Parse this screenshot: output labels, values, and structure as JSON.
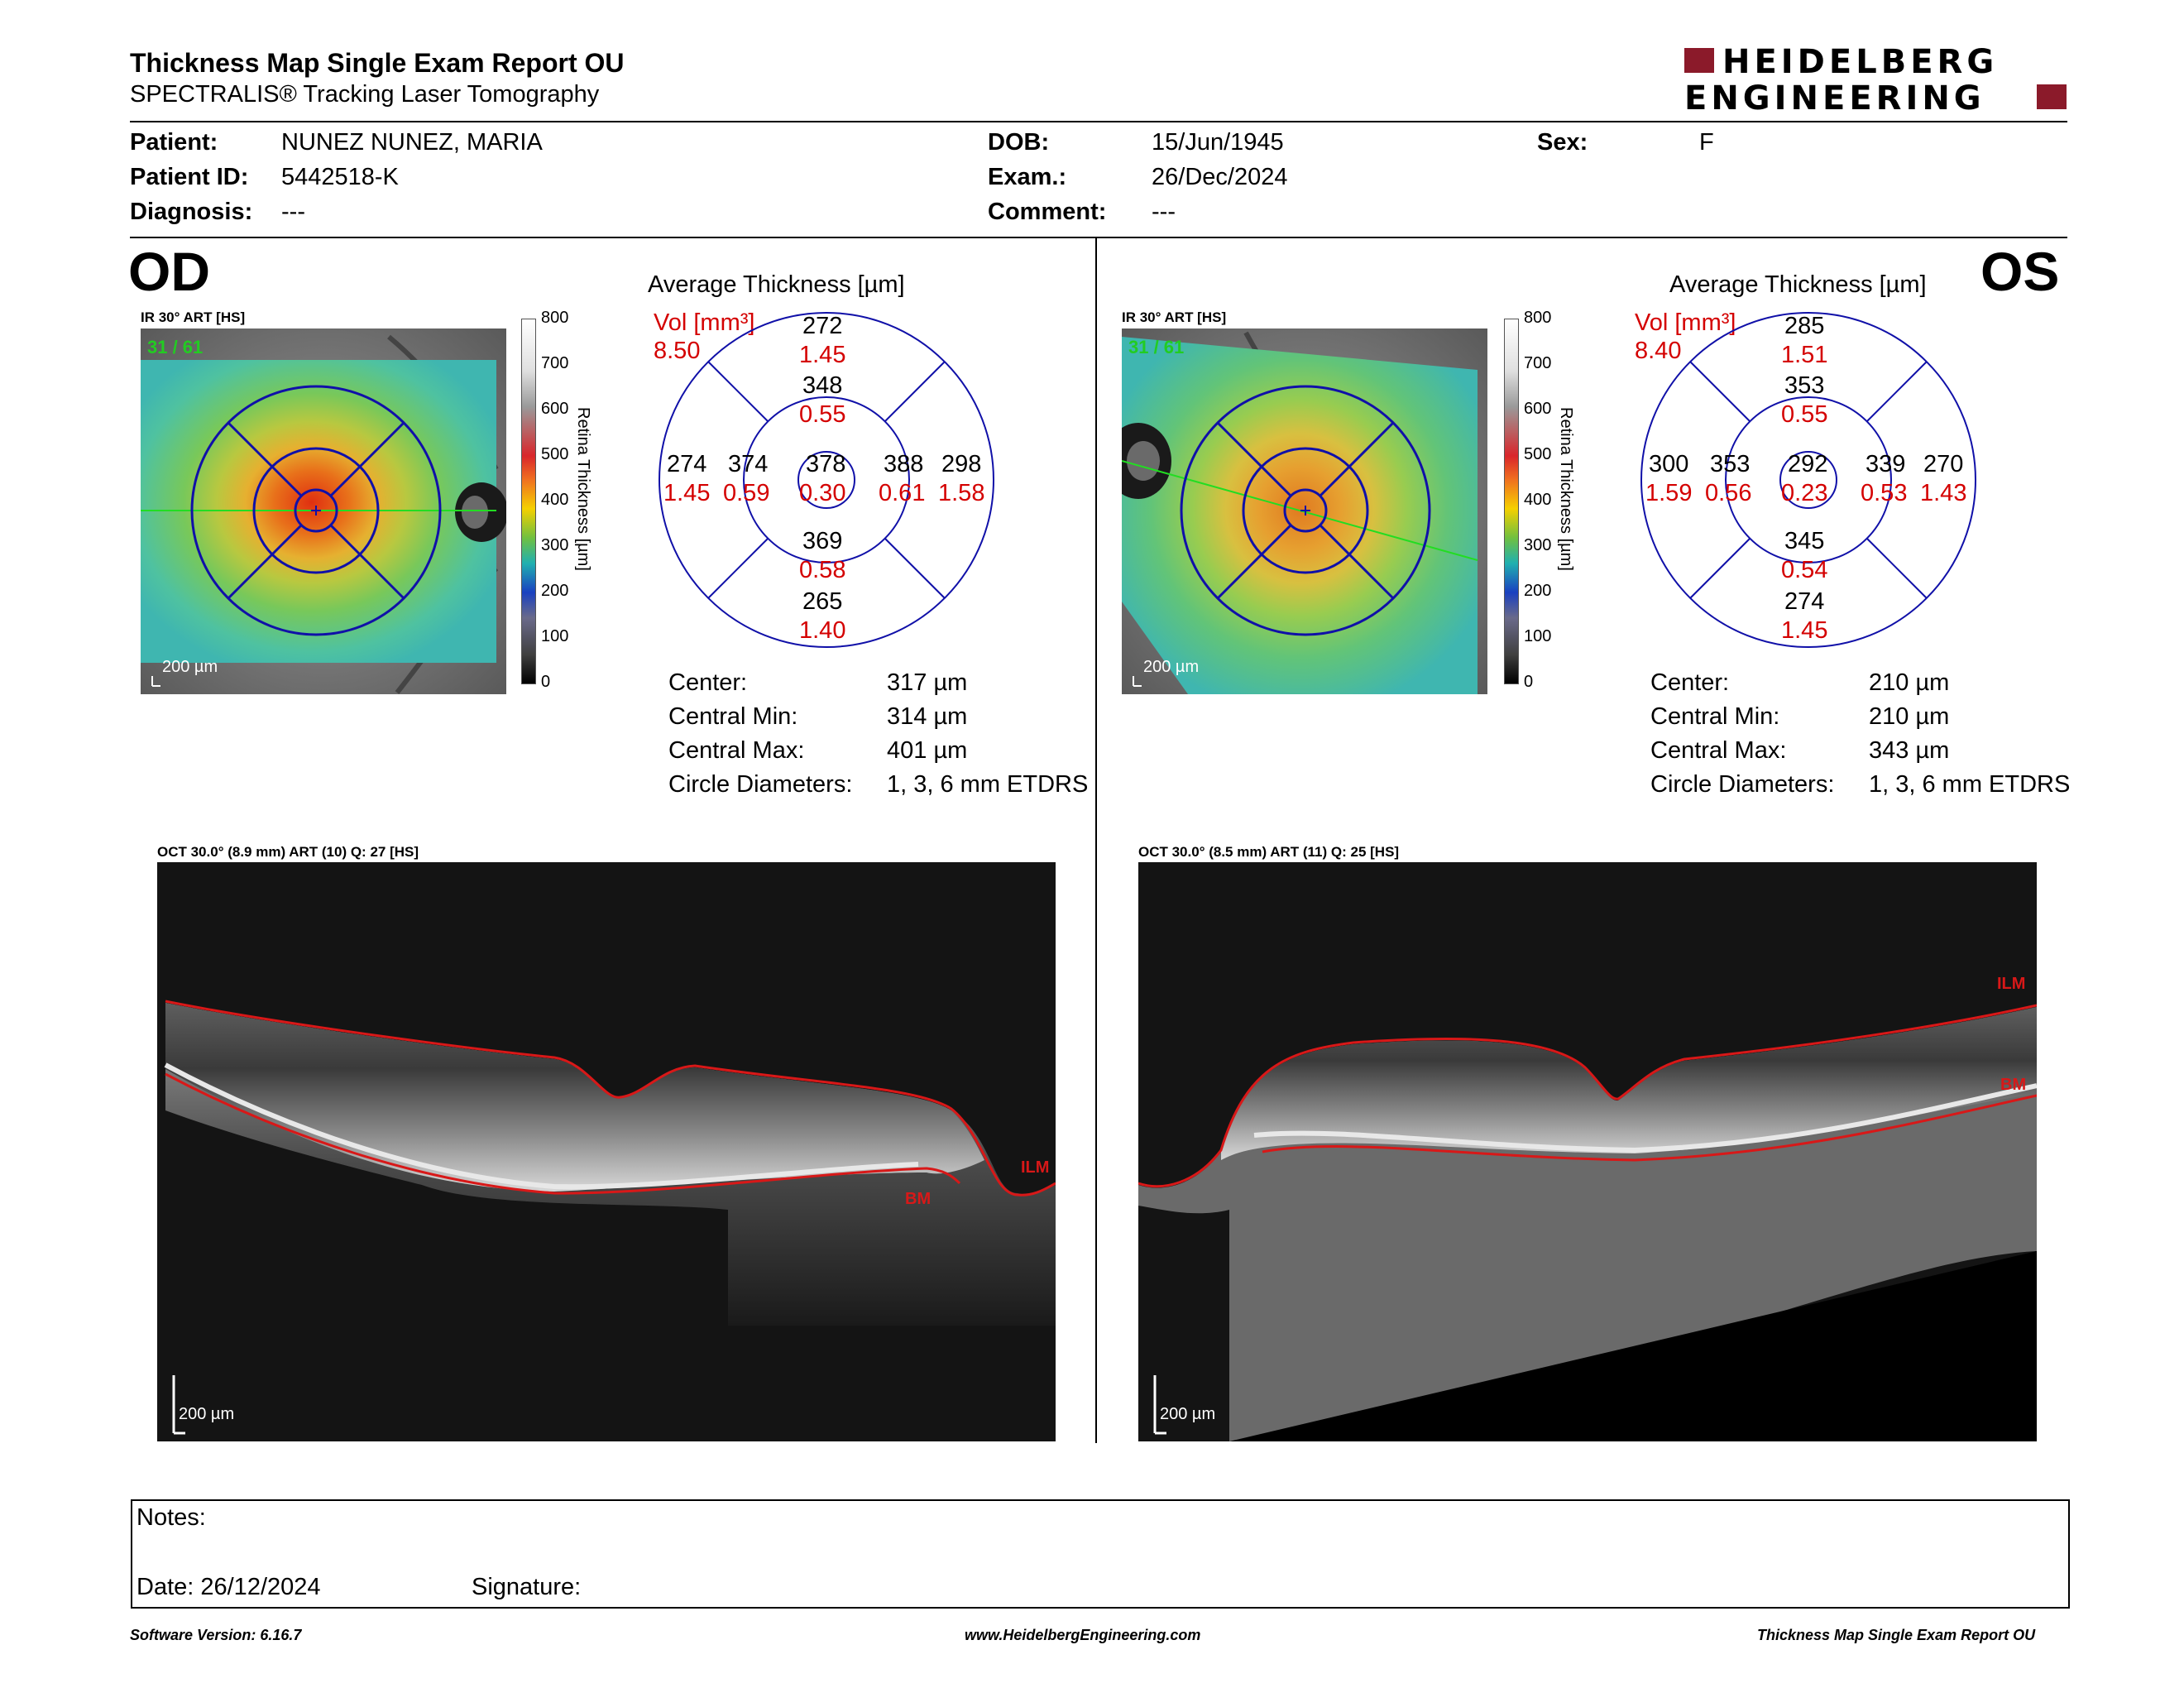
{
  "report": {
    "title": "Thickness Map Single Exam Report OU",
    "subtitle": "SPECTRALIS® Tracking Laser Tomography",
    "logo_line1": "HEIDELBERG",
    "logo_line2": "ENGINEERING"
  },
  "patient": {
    "patient_label": "Patient:",
    "patient_value": "NUNEZ NUNEZ, MARIA",
    "id_label": "Patient ID:",
    "id_value": "5442518-K",
    "diagnosis_label": "Diagnosis:",
    "diagnosis_value": "---",
    "dob_label": "DOB:",
    "dob_value": "15/Jun/1945",
    "exam_label": "Exam.:",
    "exam_value": "26/Dec/2024",
    "comment_label": "Comment:",
    "comment_value": "---",
    "sex_label": "Sex:",
    "sex_value": "F"
  },
  "colorbar": {
    "ticks": [
      "800",
      "700",
      "600",
      "500",
      "400",
      "300",
      "200",
      "100",
      "0"
    ],
    "label": "Retina Thickness [µm]"
  },
  "od": {
    "eye": "OD",
    "ir_title": "IR 30° ART [HS]",
    "ir_overlay": "31 / 61",
    "ir_scale": "200 µm",
    "chart_title": "Average Thickness [µm]",
    "vol_label": "Vol [mm³]",
    "vol_total": "8.50",
    "sectors": {
      "outer_top": {
        "t": "272",
        "v": "1.45"
      },
      "inner_top": {
        "t": "348",
        "v": "0.55"
      },
      "outer_left": {
        "t": "274",
        "v": "1.45"
      },
      "inner_left": {
        "t": "374",
        "v": "0.59"
      },
      "center": {
        "t": "378",
        "v": "0.30"
      },
      "inner_right": {
        "t": "388",
        "v": "0.61"
      },
      "outer_right": {
        "t": "298",
        "v": "1.58"
      },
      "inner_bottom": {
        "t": "369",
        "v": "0.58"
      },
      "outer_bottom": {
        "t": "265",
        "v": "1.40"
      }
    },
    "center_label": "Center:",
    "center_value": "317 µm",
    "cmin_label": "Central Min:",
    "cmin_value": "314 µm",
    "cmax_label": "Central Max:",
    "cmax_value": "401 µm",
    "diam_label": "Circle Diameters:",
    "diam_value": "1, 3, 6 mm ETDRS",
    "oct_title": "OCT 30.0° (8.9 mm) ART (10) Q: 27 [HS]",
    "oct_scale": "200 µm",
    "ilm": "ILM",
    "bm": "BM"
  },
  "os": {
    "eye": "OS",
    "ir_title": "IR 30° ART [HS]",
    "ir_overlay": "31 / 61",
    "ir_scale": "200 µm",
    "chart_title": "Average Thickness [µm]",
    "vol_label": "Vol [mm³]",
    "vol_total": "8.40",
    "sectors": {
      "outer_top": {
        "t": "285",
        "v": "1.51"
      },
      "inner_top": {
        "t": "353",
        "v": "0.55"
      },
      "outer_left": {
        "t": "300",
        "v": "1.59"
      },
      "inner_left": {
        "t": "353",
        "v": "0.56"
      },
      "center": {
        "t": "292",
        "v": "0.23"
      },
      "inner_right": {
        "t": "339",
        "v": "0.53"
      },
      "outer_right": {
        "t": "270",
        "v": "1.43"
      },
      "inner_bottom": {
        "t": "345",
        "v": "0.54"
      },
      "outer_bottom": {
        "t": "274",
        "v": "1.45"
      }
    },
    "center_label": "Center:",
    "center_value": "210 µm",
    "cmin_label": "Central Min:",
    "cmin_value": "210 µm",
    "cmax_label": "Central Max:",
    "cmax_value": "343 µm",
    "diam_label": "Circle Diameters:",
    "diam_value": "1, 3, 6 mm ETDRS",
    "oct_title": "OCT 30.0° (8.5 mm) ART (11) Q: 25 [HS]",
    "oct_scale": "200 µm",
    "ilm": "ILM",
    "bm": "BM"
  },
  "notes": {
    "notes_label": "Notes:",
    "date_label": "Date: 26/12/2024",
    "signature_label": "Signature:"
  },
  "footer": {
    "software": "Software Version: 6.16.7",
    "website": "www.HeidelbergEngineering.com",
    "report_name": "Thickness Map Single Exam Report OU"
  },
  "colors": {
    "accent_red": "#d40000",
    "grid_blue": "#0000aa",
    "logo_red": "#8b1a2a"
  }
}
